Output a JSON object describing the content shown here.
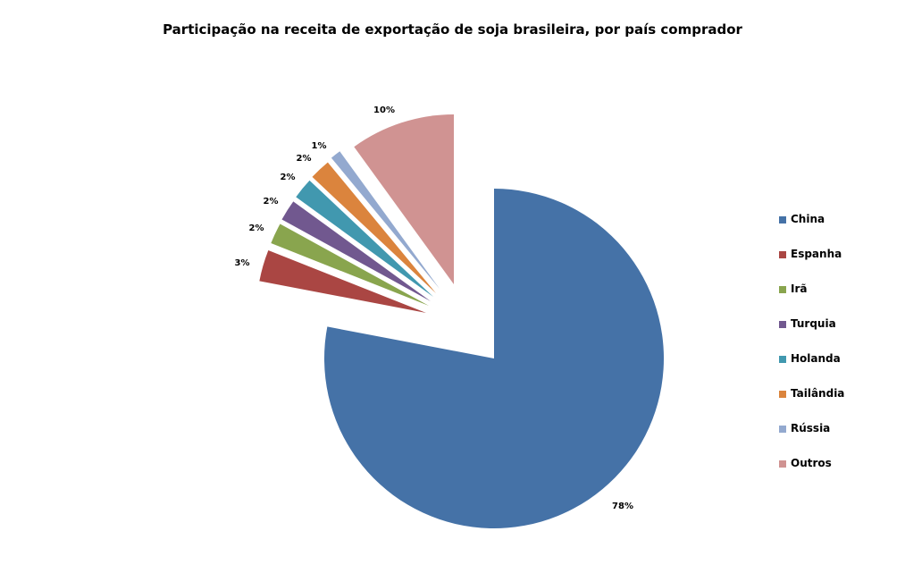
{
  "chart_data": {
    "type": "pie",
    "title": "Participação na receita de exportação de soja brasileira, por país comprador",
    "categories": [
      "China",
      "Espanha",
      "Irã",
      "Turquia",
      "Holanda",
      "Tailândia",
      "Rússia",
      "Outros"
    ],
    "values": [
      78,
      3,
      2,
      2,
      2,
      2,
      1,
      10
    ],
    "data_labels": [
      "78%",
      "3%",
      "2%",
      "2%",
      "2%",
      "2%",
      "1%",
      "10%"
    ],
    "colors": [
      "#4572A7",
      "#AA4643",
      "#89A54E",
      "#71588F",
      "#4198AF",
      "#DB843D",
      "#93A9CF",
      "#D09392"
    ],
    "exploded": [
      "Espanha",
      "Irã",
      "Turquia",
      "Holanda",
      "Tailândia",
      "Rússia",
      "Outros"
    ],
    "legend_position": "right"
  }
}
